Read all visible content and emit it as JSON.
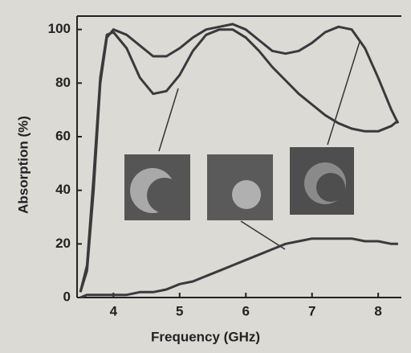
{
  "chart_data": {
    "type": "line",
    "x_label": "Frequency (GHz)",
    "y_label": "Absorption (%)",
    "x": [
      3.5,
      3.6,
      3.7,
      3.8,
      3.9,
      4.0,
      4.2,
      4.4,
      4.6,
      4.8,
      5.0,
      5.2,
      5.4,
      5.6,
      5.8,
      6.0,
      6.2,
      6.4,
      6.6,
      6.8,
      7.0,
      7.2,
      7.4,
      7.6,
      7.8,
      8.0,
      8.2,
      8.3
    ],
    "series": [
      {
        "color": "#3a3a3c",
        "values": [
          2,
          10,
          40,
          80,
          97,
          100,
          98,
          94,
          90,
          90,
          93,
          97,
          100,
          101,
          102,
          100,
          96,
          92,
          91,
          92,
          95,
          99,
          101,
          100,
          93,
          82,
          70,
          65
        ]
      },
      {
        "color": "#3a3a3c",
        "values": [
          2,
          12,
          45,
          82,
          98,
          99,
          93,
          82,
          76,
          77,
          83,
          92,
          98,
          100,
          100,
          97,
          92,
          86,
          81,
          76,
          72,
          68,
          65,
          63,
          62,
          62,
          64,
          66
        ]
      },
      {
        "color": "#3a3a3c",
        "values": [
          0,
          1,
          1,
          1,
          1,
          1,
          1,
          2,
          2,
          3,
          5,
          6,
          8,
          10,
          12,
          14,
          16,
          18,
          20,
          21,
          22,
          22,
          22,
          22,
          21,
          21,
          20,
          20
        ]
      }
    ],
    "xlim": [
      3.45,
      8.35
    ],
    "ylim": [
      0,
      105
    ],
    "xticks": [
      4,
      5,
      6,
      7,
      8
    ],
    "yticks": [
      0,
      20,
      40,
      60,
      80,
      100
    ]
  }
}
